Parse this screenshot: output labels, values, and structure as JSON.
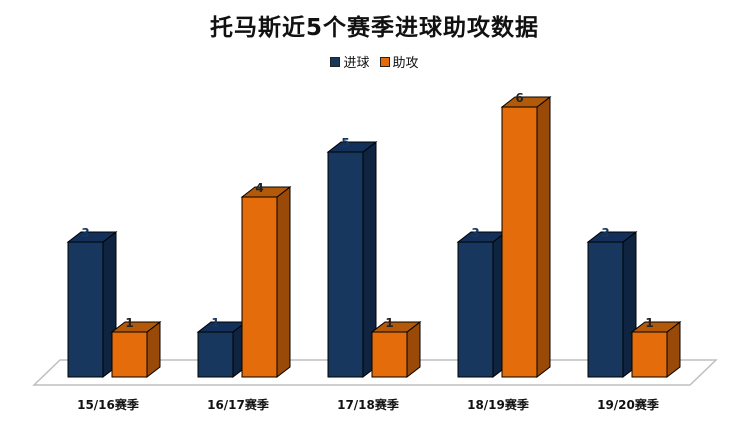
{
  "title": "托马斯近5个赛季进球助攻数据",
  "legend": [
    {
      "label": "进球",
      "color": "#17375e"
    },
    {
      "label": "助攻",
      "color": "#e46c0a"
    }
  ],
  "chart_data": {
    "type": "bar",
    "title": "托马斯近5个赛季进球助攻数据",
    "xlabel": "",
    "ylabel": "",
    "categories": [
      "15/16赛季",
      "16/17赛季",
      "17/18赛季",
      "18/19赛季",
      "19/20赛季"
    ],
    "series": [
      {
        "name": "进球",
        "values": [
          3,
          1,
          5,
          3,
          3
        ],
        "color": "#17375e"
      },
      {
        "name": "助攻",
        "values": [
          1,
          4,
          1,
          6,
          1
        ],
        "color": "#e46c0a"
      }
    ],
    "ylim": [
      0,
      6
    ],
    "grid": false,
    "legend_position": "top",
    "style": "3d-clustered-column",
    "data_labels": true
  }
}
